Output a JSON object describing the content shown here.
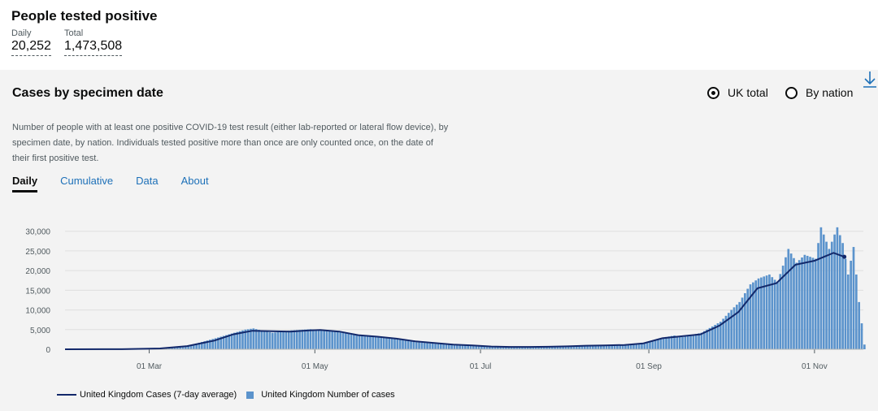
{
  "summary": {
    "title": "People tested positive",
    "daily_label": "Daily",
    "daily_value": "20,252",
    "total_label": "Total",
    "total_value": "1,473,508"
  },
  "card": {
    "title": "Cases by specimen date",
    "radio_uk": "UK total",
    "radio_nation": "By nation",
    "selected": "UK total",
    "description": "Number of people with at least one positive COVID-19 test result (either lab-reported or lateral flow device), by specimen date, by nation. Individuals tested positive more than once are only counted once, on the date of their first positive test.",
    "tabs": [
      "Daily",
      "Cumulative",
      "Data",
      "About"
    ],
    "active_tab": "Daily",
    "download_icon": "download-icon"
  },
  "colors": {
    "bar": "#5b93cc",
    "line": "#12286a",
    "link": "#1d70b8"
  },
  "chart_data": {
    "type": "bar",
    "yticks": [
      "30,000",
      "25,000",
      "20,000",
      "15,000",
      "10,000",
      "5,000",
      "0"
    ],
    "xticks": [
      "01 Mar",
      "01 May",
      "01 Jul",
      "01 Sep",
      "01 Nov"
    ],
    "ylim": [
      0,
      32000
    ],
    "x_start": "2020-01-30",
    "x_end": "2020-11-19",
    "grid": true,
    "legend": "bottom-left",
    "series": [
      {
        "name": "United Kingdom Cases (7-day average)",
        "type": "line",
        "points": [
          [
            "2020-01-30",
            0
          ],
          [
            "2020-02-20",
            30
          ],
          [
            "2020-03-05",
            200
          ],
          [
            "2020-03-15",
            800
          ],
          [
            "2020-03-25",
            2200
          ],
          [
            "2020-04-01",
            3800
          ],
          [
            "2020-04-08",
            4700
          ],
          [
            "2020-04-15",
            4600
          ],
          [
            "2020-04-22",
            4500
          ],
          [
            "2020-04-29",
            4800
          ],
          [
            "2020-05-03",
            4900
          ],
          [
            "2020-05-10",
            4500
          ],
          [
            "2020-05-17",
            3600
          ],
          [
            "2020-05-24",
            3200
          ],
          [
            "2020-05-31",
            2700
          ],
          [
            "2020-06-07",
            2000
          ],
          [
            "2020-06-14",
            1600
          ],
          [
            "2020-06-21",
            1200
          ],
          [
            "2020-06-28",
            1000
          ],
          [
            "2020-07-05",
            700
          ],
          [
            "2020-07-12",
            600
          ],
          [
            "2020-07-19",
            600
          ],
          [
            "2020-07-26",
            650
          ],
          [
            "2020-08-02",
            750
          ],
          [
            "2020-08-09",
            900
          ],
          [
            "2020-08-16",
            1000
          ],
          [
            "2020-08-23",
            1100
          ],
          [
            "2020-08-30",
            1500
          ],
          [
            "2020-09-06",
            2800
          ],
          [
            "2020-09-13",
            3300
          ],
          [
            "2020-09-20",
            3800
          ],
          [
            "2020-09-27",
            6000
          ],
          [
            "2020-10-04",
            9500
          ],
          [
            "2020-10-11",
            15500
          ],
          [
            "2020-10-18",
            16800
          ],
          [
            "2020-10-25",
            21500
          ],
          [
            "2020-11-01",
            22500
          ],
          [
            "2020-11-08",
            24500
          ],
          [
            "2020-11-12",
            23500
          ]
        ]
      },
      {
        "name": "United Kingdom Number of cases",
        "type": "bar",
        "points": [
          [
            "2020-01-30",
            0
          ],
          [
            "2020-02-20",
            20
          ],
          [
            "2020-03-05",
            150
          ],
          [
            "2020-03-15",
            900
          ],
          [
            "2020-03-25",
            2800
          ],
          [
            "2020-04-01",
            4200
          ],
          [
            "2020-04-05",
            5000
          ],
          [
            "2020-04-08",
            5300
          ],
          [
            "2020-04-12",
            4600
          ],
          [
            "2020-04-15",
            4200
          ],
          [
            "2020-04-22",
            4800
          ],
          [
            "2020-04-29",
            5100
          ],
          [
            "2020-05-03",
            4900
          ],
          [
            "2020-05-10",
            4300
          ],
          [
            "2020-05-17",
            3400
          ],
          [
            "2020-05-24",
            3200
          ],
          [
            "2020-05-31",
            2500
          ],
          [
            "2020-06-07",
            1800
          ],
          [
            "2020-06-14",
            1400
          ],
          [
            "2020-06-21",
            1200
          ],
          [
            "2020-06-28",
            950
          ],
          [
            "2020-07-05",
            700
          ],
          [
            "2020-07-12",
            650
          ],
          [
            "2020-07-19",
            600
          ],
          [
            "2020-07-26",
            700
          ],
          [
            "2020-08-02",
            850
          ],
          [
            "2020-08-09",
            950
          ],
          [
            "2020-08-16",
            1050
          ],
          [
            "2020-08-23",
            1100
          ],
          [
            "2020-08-30",
            1500
          ],
          [
            "2020-09-06",
            3000
          ],
          [
            "2020-09-10",
            3500
          ],
          [
            "2020-09-13",
            3100
          ],
          [
            "2020-09-20",
            4200
          ],
          [
            "2020-09-27",
            7000
          ],
          [
            "2020-10-01",
            10000
          ],
          [
            "2020-10-04",
            12000
          ],
          [
            "2020-10-08",
            16500
          ],
          [
            "2020-10-11",
            18000
          ],
          [
            "2020-10-15",
            19000
          ],
          [
            "2020-10-18",
            17000
          ],
          [
            "2020-10-22",
            25500
          ],
          [
            "2020-10-25",
            22000
          ],
          [
            "2020-10-28",
            24000
          ],
          [
            "2020-11-01",
            23000
          ],
          [
            "2020-11-03",
            31000
          ],
          [
            "2020-11-06",
            25500
          ],
          [
            "2020-11-09",
            31000
          ],
          [
            "2020-11-11",
            27000
          ],
          [
            "2020-11-13",
            19000
          ],
          [
            "2020-11-15",
            26000
          ],
          [
            "2020-11-17",
            12000
          ],
          [
            "2020-11-19",
            1200
          ]
        ]
      }
    ]
  }
}
